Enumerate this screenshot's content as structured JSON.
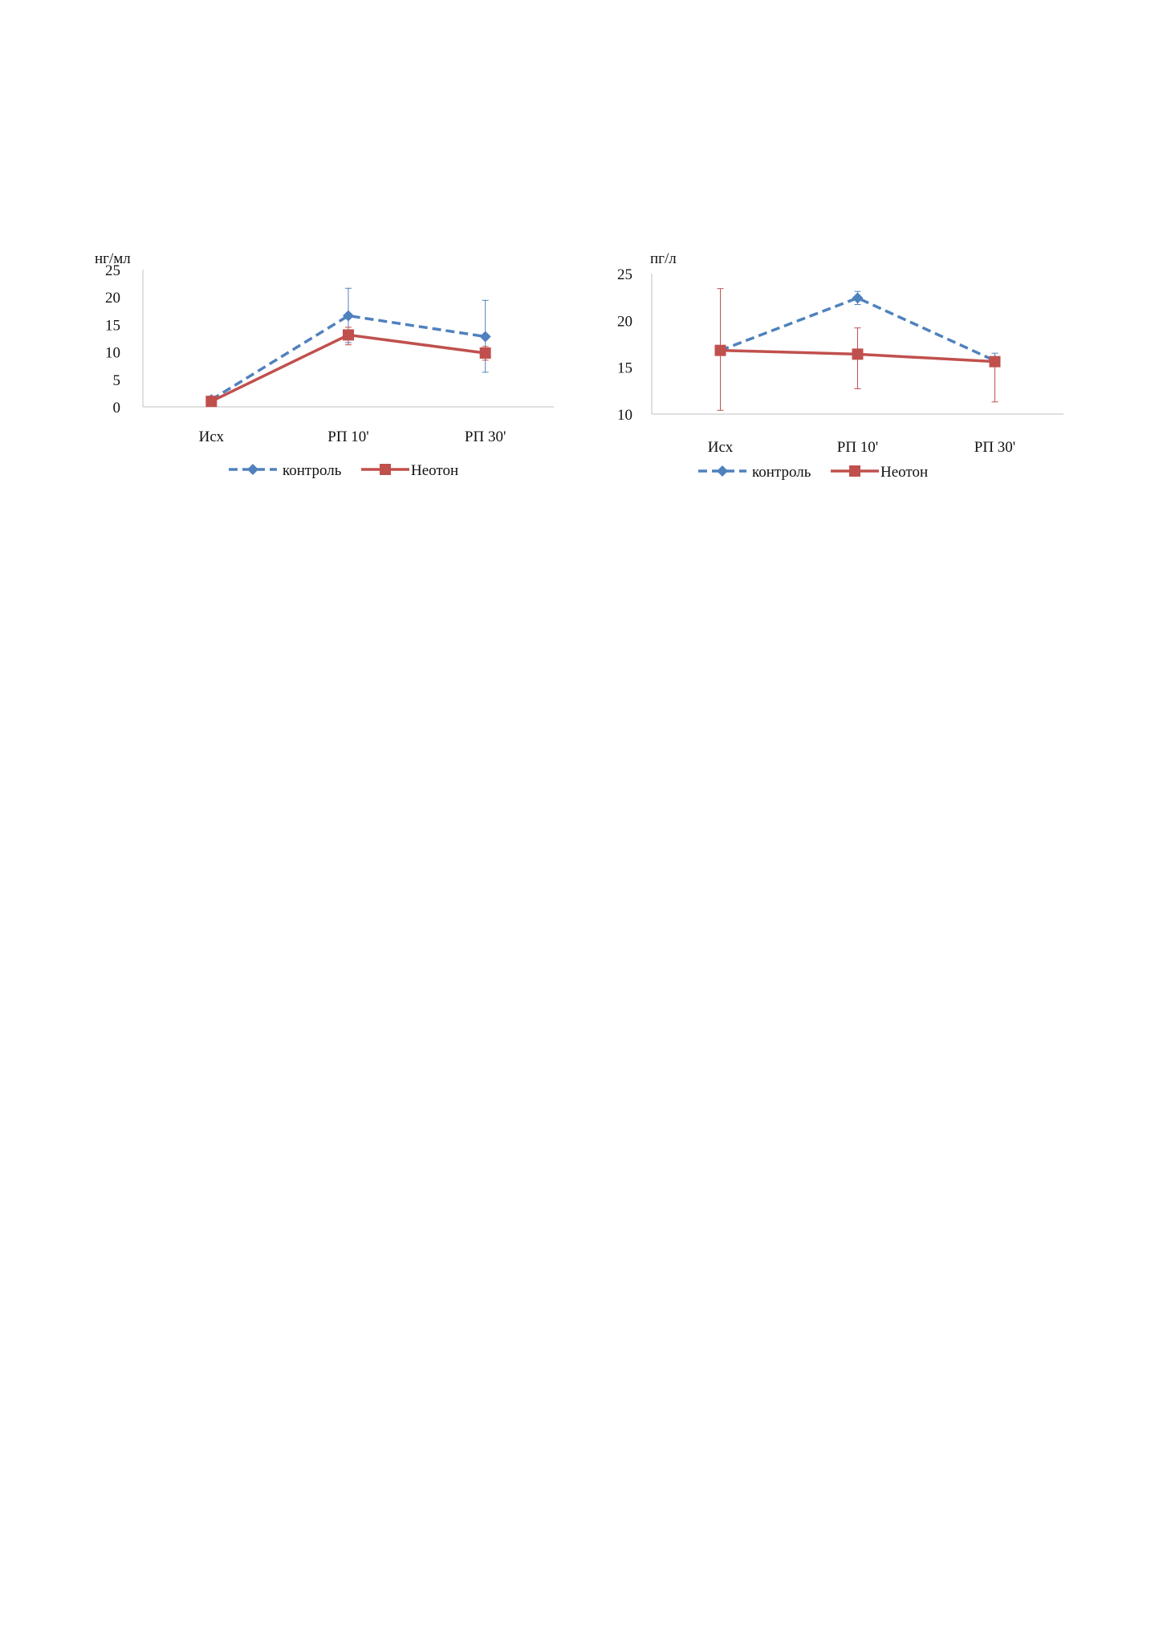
{
  "chart_data": [
    {
      "type": "line",
      "ylabel": "нг/мл",
      "categories": [
        "Исх",
        "РП 10'",
        "РП 30'"
      ],
      "ylim": [
        0,
        25
      ],
      "yticks": [
        "0",
        "5",
        "10",
        "15",
        "20",
        "25"
      ],
      "grid": false,
      "legend": "bottom",
      "series": [
        {
          "name": "контроль",
          "values": [
            1.3,
            16.6,
            12.8
          ],
          "err_low": [
            0.3,
            4.9,
            6.5
          ],
          "err_high": [
            0.3,
            5.0,
            6.6
          ],
          "color": "#4F81BD",
          "dashed": true,
          "marker": "diamond"
        },
        {
          "name": "Неотон",
          "values": [
            1.0,
            13.1,
            9.8
          ],
          "err_low": [
            0.3,
            1.8,
            1.3
          ],
          "err_high": [
            0.3,
            1.4,
            1.2
          ],
          "color": "#C0504D",
          "dashed": false,
          "marker": "square"
        }
      ]
    },
    {
      "type": "line",
      "ylabel": "пг/л",
      "categories": [
        "Исх",
        "РП 10'",
        "РП 30'"
      ],
      "ylim": [
        10,
        25
      ],
      "yticks": [
        "10",
        "15",
        "20",
        "25"
      ],
      "grid": false,
      "legend": "bottom",
      "series": [
        {
          "name": "контроль",
          "values": [
            16.8,
            22.4,
            15.7
          ],
          "err_low": [
            0.2,
            0.7,
            0.6
          ],
          "err_high": [
            0.2,
            0.7,
            0.8
          ],
          "color": "#4F81BD",
          "dashed": true,
          "marker": "diamond"
        },
        {
          "name": "Неотон",
          "values": [
            16.8,
            16.4,
            15.6
          ],
          "err_low": [
            6.4,
            3.7,
            4.3
          ],
          "err_high": [
            6.6,
            2.8,
            0.4
          ],
          "color": "#C0504D",
          "dashed": false,
          "marker": "square"
        }
      ]
    }
  ]
}
